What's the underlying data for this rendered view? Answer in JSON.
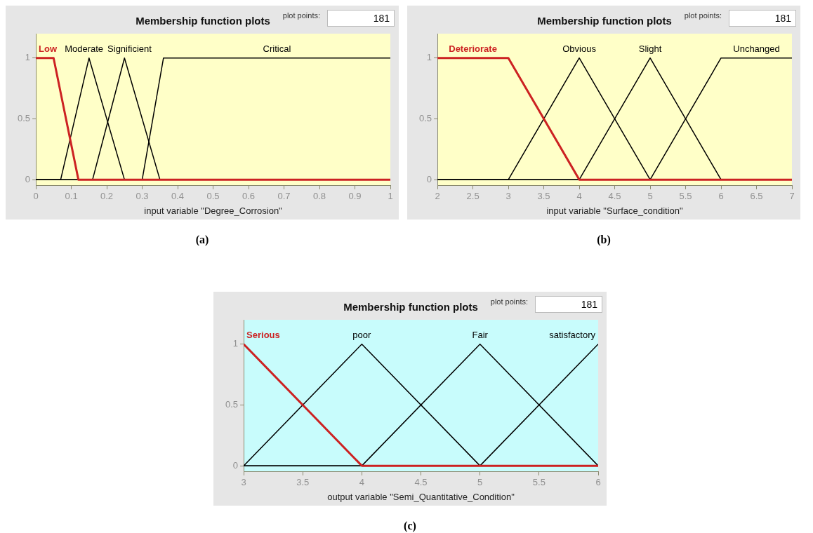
{
  "chart_data": [
    {
      "type": "line",
      "title": "Membership function plots",
      "xlabel": "input variable \"Degree_Corrosion\"",
      "xlim": [
        0,
        1
      ],
      "xticks": [
        0,
        0.1,
        0.2,
        0.3,
        0.4,
        0.5,
        0.6,
        0.7,
        0.8,
        0.9,
        1
      ],
      "ylim": [
        -0.05,
        1.2
      ],
      "yticks": [
        0,
        0.5,
        1
      ],
      "grid": false,
      "legend": false,
      "annotations": [
        "plot points:",
        "181",
        "(a)"
      ],
      "series": [
        {
          "name": "Low",
          "color": "#cc2222",
          "x": [
            0,
            0.05,
            0.12,
            1
          ],
          "values": [
            1,
            1,
            0,
            0
          ]
        },
        {
          "name": "Moderate",
          "color": "#000000",
          "x": [
            0,
            0.07,
            0.15,
            0.25,
            1
          ],
          "values": [
            0,
            0,
            1,
            0,
            0
          ]
        },
        {
          "name": "Significient",
          "color": "#000000",
          "x": [
            0,
            0.16,
            0.25,
            0.35,
            1
          ],
          "values": [
            0,
            0,
            1,
            0,
            0
          ]
        },
        {
          "name": "Critical",
          "color": "#000000",
          "x": [
            0,
            0.3,
            0.36,
            1
          ],
          "values": [
            0,
            0,
            1,
            1
          ]
        }
      ]
    },
    {
      "type": "line",
      "title": "Membership function plots",
      "xlabel": "input variable \"Surface_condition\"",
      "xlim": [
        2,
        7
      ],
      "xticks": [
        2,
        2.5,
        3,
        3.5,
        4,
        4.5,
        5,
        5.5,
        6,
        6.5,
        7
      ],
      "ylim": [
        -0.05,
        1.2
      ],
      "yticks": [
        0,
        0.5,
        1
      ],
      "grid": false,
      "legend": false,
      "annotations": [
        "plot points:",
        "181",
        "(b)"
      ],
      "series": [
        {
          "name": "Deteriorate",
          "color": "#cc2222",
          "x": [
            2,
            3,
            4,
            7
          ],
          "values": [
            1,
            1,
            0,
            0
          ]
        },
        {
          "name": "Obvious",
          "color": "#000000",
          "x": [
            2,
            3,
            4,
            5,
            7
          ],
          "values": [
            0,
            0,
            1,
            0,
            0
          ]
        },
        {
          "name": "Slight",
          "color": "#000000",
          "x": [
            2,
            4,
            5,
            6,
            7
          ],
          "values": [
            0,
            0,
            1,
            0,
            0
          ]
        },
        {
          "name": "Unchanged",
          "color": "#000000",
          "x": [
            2,
            5,
            6,
            7
          ],
          "values": [
            0,
            0,
            1,
            1
          ]
        }
      ]
    },
    {
      "type": "line",
      "title": "Membership function plots",
      "xlabel": "output variable \"Semi_Quantitative_Condition\"",
      "xlim": [
        3,
        6
      ],
      "xticks": [
        3,
        3.5,
        4,
        4.5,
        5,
        5.5,
        6
      ],
      "ylim": [
        -0.05,
        1.2
      ],
      "yticks": [
        0,
        0.5,
        1
      ],
      "grid": false,
      "legend": false,
      "annotations": [
        "plot points:",
        "181",
        "(c)"
      ],
      "series": [
        {
          "name": "Serious",
          "color": "#cc2222",
          "x": [
            3,
            4,
            6
          ],
          "values": [
            1,
            0,
            0
          ]
        },
        {
          "name": "poor",
          "color": "#000000",
          "x": [
            3,
            4,
            5,
            6
          ],
          "values": [
            0,
            1,
            0,
            0
          ]
        },
        {
          "name": "Fair",
          "color": "#000000",
          "x": [
            3,
            4,
            5,
            6
          ],
          "values": [
            0,
            0,
            1,
            0
          ]
        },
        {
          "name": "satisfactory",
          "color": "#000000",
          "x": [
            3,
            5,
            6
          ],
          "values": [
            0,
            0,
            1
          ]
        }
      ]
    }
  ]
}
